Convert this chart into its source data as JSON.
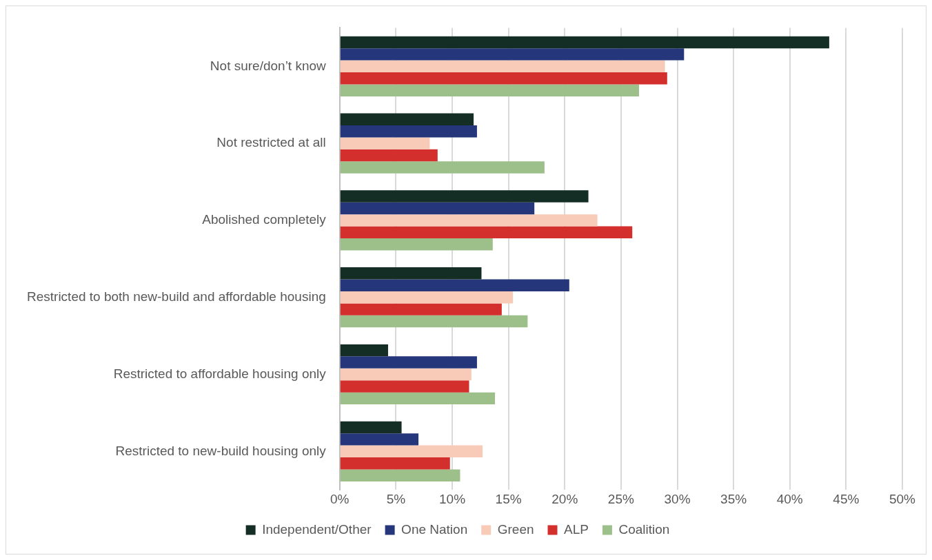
{
  "chart_data": {
    "type": "bar",
    "orientation": "horizontal",
    "categories": [
      "Not sure/don’t know",
      "Not restricted at all",
      "Abolished completely",
      "Restricted to both new-build and affordable housing",
      "Restricted to affordable housing only",
      "Restricted to new-build housing only"
    ],
    "series": [
      {
        "name": "Independent/Other",
        "color": "#142d25",
        "values": [
          43.5,
          11.9,
          22.1,
          12.6,
          4.3,
          5.5
        ]
      },
      {
        "name": "One Nation",
        "color": "#26367a",
        "values": [
          30.6,
          12.2,
          17.3,
          20.4,
          12.2,
          7.0
        ]
      },
      {
        "name": "Green",
        "color": "#f7cbb8",
        "values": [
          28.9,
          8.0,
          22.9,
          15.4,
          11.7,
          12.7
        ]
      },
      {
        "name": "ALP",
        "color": "#d22f2d",
        "values": [
          29.1,
          8.7,
          26.0,
          14.4,
          11.5,
          9.8
        ]
      },
      {
        "name": "Coalition",
        "color": "#9dc08b",
        "values": [
          26.6,
          18.2,
          13.6,
          16.7,
          13.8,
          10.7
        ]
      }
    ],
    "xlim": [
      0,
      50
    ],
    "xticks": [
      {
        "value": 0,
        "label": "0%"
      },
      {
        "value": 5,
        "label": "5%"
      },
      {
        "value": 10,
        "label": "10%"
      },
      {
        "value": 15,
        "label": "15%"
      },
      {
        "value": 20,
        "label": "20%"
      },
      {
        "value": 25,
        "label": "25%"
      },
      {
        "value": 30,
        "label": "30%"
      },
      {
        "value": 35,
        "label": "35%"
      },
      {
        "value": 40,
        "label": "40%"
      },
      {
        "value": 45,
        "label": "45%"
      },
      {
        "value": 50,
        "label": "50%"
      }
    ],
    "grid": "x",
    "legend": "bottom"
  }
}
